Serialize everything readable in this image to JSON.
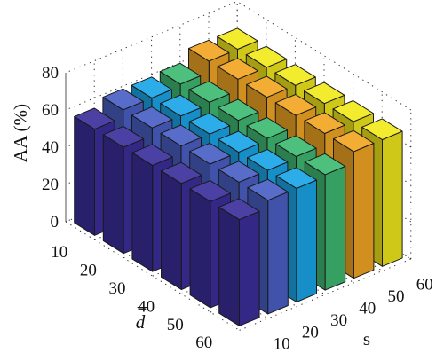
{
  "chart_data": {
    "type": "bar3d",
    "ylabel": "AA (%)",
    "xlabel_italic": "d",
    "xlabel_bar": "¯",
    "slabel": "s",
    "zlim": [
      0,
      80
    ],
    "z_ticks": [
      "0",
      "20",
      "40",
      "60",
      "80"
    ],
    "d_values": [
      "10",
      "20",
      "30",
      "40",
      "50",
      "60"
    ],
    "s_values": [
      "10",
      "20",
      "30",
      "40",
      "50",
      "60"
    ],
    "s_colors": [
      "#3b2f9c",
      "#4a5fc4",
      "#1aa6e8",
      "#3fba73",
      "#f2a623",
      "#f2e91c"
    ],
    "values": [
      [
        57,
        61,
        61,
        62,
        68,
        68
      ],
      [
        57,
        61,
        61,
        62,
        68,
        68
      ],
      [
        57,
        61,
        61,
        62,
        68,
        68
      ],
      [
        57,
        61,
        61,
        62,
        68,
        68
      ],
      [
        57,
        61,
        61,
        62,
        68,
        68
      ],
      [
        57,
        61,
        61,
        62,
        68,
        68
      ]
    ],
    "grid": true
  }
}
